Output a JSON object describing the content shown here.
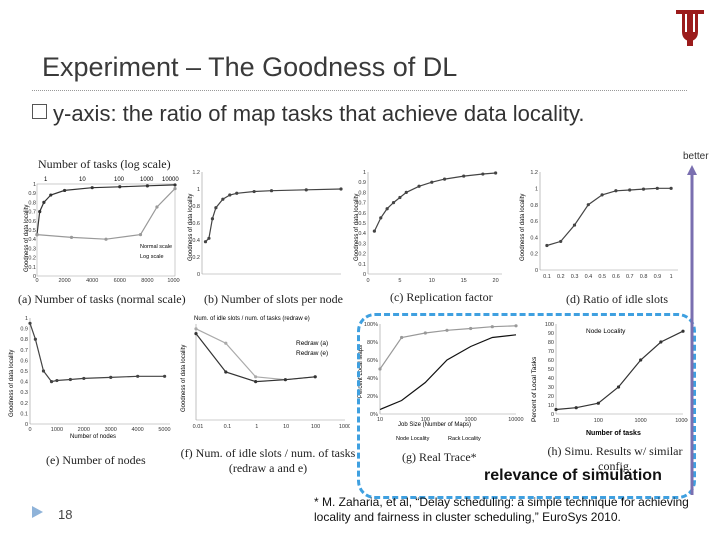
{
  "slide": {
    "title": "Experiment – The Goodness of DL",
    "bullet": "y-axis: the ratio of map tasks that achieve data locality.",
    "better_label": "better",
    "relevance_label": "relevance of simulation",
    "page_number": "18",
    "citation": "* M. Zaharia, et al, “Delay scheduling: a simple technique for achieving locality and fairness in cluster scheduling,” EuroSys 2010."
  },
  "panels": {
    "a": {
      "caption": "(a) Number of tasks (normal scale)",
      "top_caption": "Number of tasks (log scale)",
      "legend": [
        "Normal scale",
        "Log scale"
      ],
      "ylabel": "Goodness of data locality",
      "top_ticks": [
        "1",
        "10",
        "100",
        "1000",
        "10000"
      ],
      "y_ticks": [
        "0",
        "0.1",
        "0.2",
        "0.3",
        "0.4",
        "0.5",
        "0.6",
        "0.7",
        "0.8",
        "0.9",
        "1"
      ],
      "x_ticks": [
        "0",
        "2000",
        "4000",
        "6000",
        "8000",
        "10000"
      ]
    },
    "b": {
      "caption": "(b) Number of slots per node",
      "ylabel": "Goodness of data locality",
      "y_ticks": [
        "0",
        "0.2",
        "0.4",
        "0.6",
        "0.8",
        "1",
        "1.2"
      ]
    },
    "c": {
      "caption": "(c) Replication factor",
      "ylabel": "Goodness of data locality",
      "y_ticks": [
        "0",
        "0.1",
        "0.2",
        "0.3",
        "0.4",
        "0.5",
        "0.6",
        "0.7",
        "0.8",
        "0.9",
        "1"
      ],
      "x_ticks": [
        "0",
        "5",
        "10",
        "15",
        "20"
      ]
    },
    "d": {
      "caption": "(d) Ratio of idle slots",
      "ylabel": "Goodness of data locality",
      "y_ticks": [
        "0",
        "0.2",
        "0.4",
        "0.6",
        "0.8",
        "1",
        "1.2"
      ],
      "x_ticks": [
        "0.1",
        "0.2",
        "0.3",
        "0.4",
        "0.5",
        "0.6",
        "0.7",
        "0.8",
        "0.9",
        "1"
      ]
    },
    "e": {
      "caption": "(e) Number of nodes",
      "xlabel": "Number of nodes",
      "ylabel": "Goodness of data locality",
      "y_ticks": [
        "0",
        "0.1",
        "0.2",
        "0.3",
        "0.4",
        "0.5",
        "0.6",
        "0.7",
        "0.8",
        "0.9",
        "1"
      ],
      "x_ticks": [
        "0",
        "1000",
        "2000",
        "3000",
        "4000",
        "5000"
      ]
    },
    "f": {
      "caption": "(f) Num. of idle slots / num. of tasks (redraw a and e)",
      "top_caption": "Num. of idle slots / num. of tasks (redraw e)",
      "legend": [
        "Redraw (a)",
        "Redraw (e)"
      ],
      "ylabel": "Goodness of data locality",
      "x_ticks": [
        "0.01",
        "0.1",
        "1",
        "10",
        "100",
        "1000"
      ]
    },
    "g": {
      "caption": "(g) Real Trace*",
      "xlabel": "Job Size (Number of Maps)",
      "ylabel": "Percent Local Maps",
      "legend": [
        "Node Locality",
        "Rack Locality"
      ],
      "x_ticks": [
        "10",
        "100",
        "1000",
        "10000"
      ],
      "y_ticks": [
        "0%",
        "20%",
        "40%",
        "60%",
        "80%",
        "100%"
      ]
    },
    "h": {
      "caption": "(h) Simu. Results w/ similar config.",
      "legend": [
        "Node Locality"
      ],
      "xlabel": "Number of tasks",
      "ylabel": "Percent of Local Tasks",
      "x_ticks": [
        "10",
        "100",
        "1000",
        "10000"
      ],
      "y_ticks": [
        "0",
        "10",
        "20",
        "30",
        "40",
        "50",
        "60",
        "70",
        "80",
        "90",
        "100"
      ]
    }
  },
  "chart_data": [
    {
      "id": "a",
      "type": "line",
      "series": [
        {
          "name": "Normal scale",
          "x": [
            1,
            200,
            500,
            1000,
            2000,
            4000,
            6000,
            8000,
            10000
          ],
          "y": [
            0.45,
            0.7,
            0.8,
            0.88,
            0.93,
            0.96,
            0.97,
            0.98,
            0.99
          ]
        },
        {
          "name": "Log scale",
          "x": [
            1,
            10,
            100,
            1000,
            3000,
            10000
          ],
          "y": [
            0.45,
            0.42,
            0.4,
            0.45,
            0.75,
            0.95
          ]
        }
      ]
    },
    {
      "id": "b",
      "type": "line",
      "x": [
        1,
        2,
        3,
        4,
        6,
        8,
        10,
        15,
        20,
        30,
        40
      ],
      "y": [
        0.38,
        0.42,
        0.65,
        0.78,
        0.88,
        0.93,
        0.95,
        0.97,
        0.98,
        0.99,
        1.0
      ]
    },
    {
      "id": "c",
      "type": "line",
      "x": [
        1,
        2,
        3,
        4,
        5,
        6,
        8,
        10,
        12,
        15,
        18,
        20
      ],
      "y": [
        0.42,
        0.55,
        0.64,
        0.7,
        0.75,
        0.8,
        0.86,
        0.9,
        0.93,
        0.96,
        0.98,
        0.99
      ]
    },
    {
      "id": "d",
      "type": "line",
      "x": [
        0.1,
        0.2,
        0.3,
        0.4,
        0.5,
        0.6,
        0.7,
        0.8,
        0.9,
        1.0
      ],
      "y": [
        0.3,
        0.35,
        0.55,
        0.8,
        0.92,
        0.97,
        0.98,
        0.99,
        1.0,
        1.0
      ]
    },
    {
      "id": "e",
      "type": "line",
      "x": [
        0,
        200,
        500,
        800,
        1000,
        1500,
        2000,
        3000,
        4000,
        5000
      ],
      "y": [
        0.95,
        0.8,
        0.5,
        0.4,
        0.41,
        0.42,
        0.43,
        0.44,
        0.45,
        0.45
      ]
    },
    {
      "id": "f",
      "type": "line",
      "series": [
        {
          "name": "Redraw (a)",
          "x": [
            0.01,
            0.1,
            1,
            10,
            100
          ],
          "y": [
            0.95,
            0.8,
            0.45,
            0.42,
            0.45
          ]
        },
        {
          "name": "Redraw (e)",
          "x": [
            0.01,
            0.1,
            1,
            10,
            100
          ],
          "y": [
            0.9,
            0.5,
            0.4,
            0.42,
            0.45
          ]
        }
      ]
    },
    {
      "id": "g",
      "type": "line",
      "series": [
        {
          "name": "Node Locality",
          "x": [
            10,
            30,
            100,
            300,
            1000,
            3000,
            10000
          ],
          "y": [
            5,
            15,
            35,
            60,
            75,
            85,
            88
          ]
        },
        {
          "name": "Rack Locality",
          "x": [
            10,
            30,
            100,
            300,
            1000,
            3000,
            10000
          ],
          "y": [
            50,
            85,
            90,
            93,
            95,
            97,
            98
          ]
        }
      ]
    },
    {
      "id": "h",
      "type": "line",
      "series": [
        {
          "name": "Node Locality",
          "x": [
            10,
            30,
            100,
            300,
            1000,
            3000,
            10000
          ],
          "y": [
            5,
            7,
            12,
            30,
            60,
            80,
            92
          ]
        }
      ]
    }
  ]
}
